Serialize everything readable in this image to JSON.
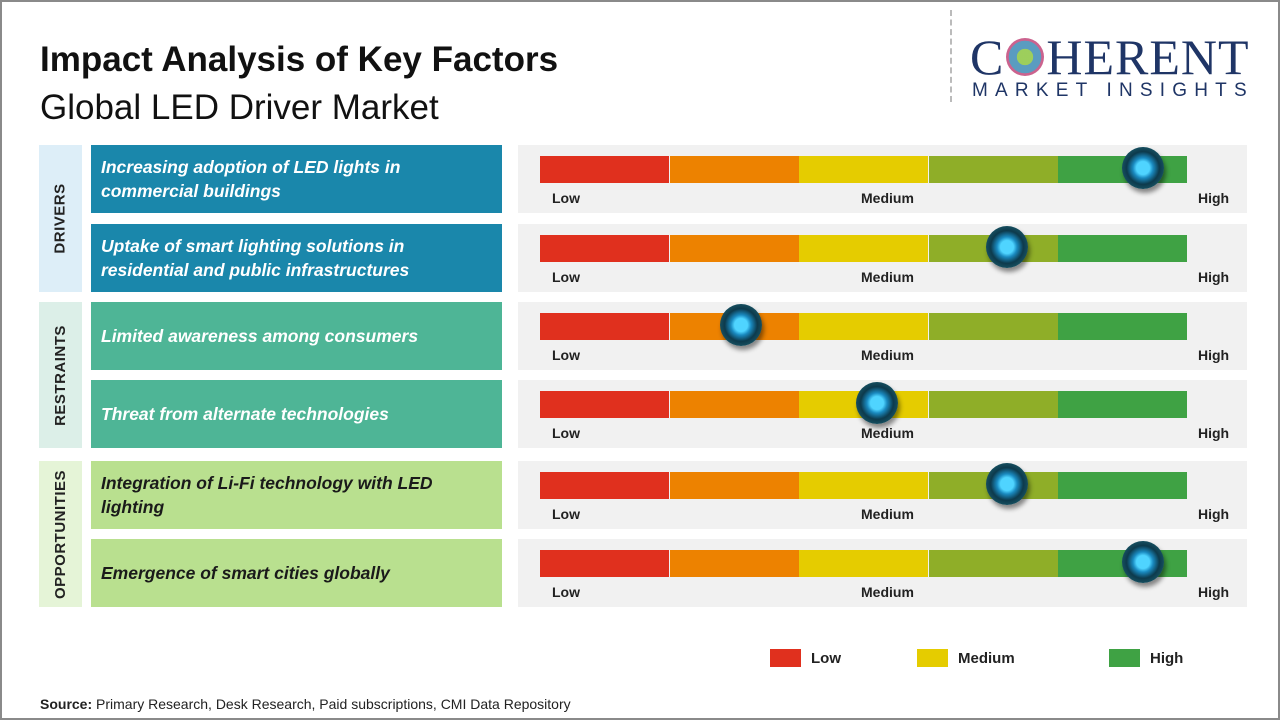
{
  "title": "Impact Analysis of Key Factors",
  "subtitle": "Global LED Driver Market",
  "logo": {
    "main_left": "C",
    "main_right": "HERENT",
    "sub": "MARKET INSIGHTS"
  },
  "colors": {
    "low": "#e0301e",
    "low_medium": "#ed8200",
    "medium": "#e5cc00",
    "medium_high": "#8fae28",
    "high": "#3fa244",
    "drivers": "#1a87ab",
    "restraints": "#4eb596",
    "opportunities": "#b9e08f"
  },
  "chart_data": {
    "type": "gauge",
    "scale_labels": [
      "Low",
      "Medium",
      "High"
    ],
    "scale_range": [
      0,
      100
    ],
    "categories": [
      {
        "name": "DRIVERS",
        "items": [
          {
            "label": "Increasing adoption of LED lights in commercial buildings",
            "impact": 93
          },
          {
            "label": "Uptake of smart lighting solutions in residential and public infrastructures",
            "impact": 72
          }
        ]
      },
      {
        "name": "RESTRAINTS",
        "items": [
          {
            "label": "Limited awareness among consumers",
            "impact": 31
          },
          {
            "label": "Threat from alternate technologies",
            "impact": 52
          }
        ]
      },
      {
        "name": "OPPORTUNITIES",
        "items": [
          {
            "label": "Integration of Li-Fi technology with LED lighting",
            "impact": 72
          },
          {
            "label": "Emergence of smart cities globally",
            "impact": 93
          }
        ]
      }
    ],
    "legend": [
      "Low",
      "Medium",
      "High"
    ]
  },
  "source": {
    "label": "Source:",
    "text": " Primary Research, Desk Research, Paid subscriptions, CMI Data Repository"
  }
}
